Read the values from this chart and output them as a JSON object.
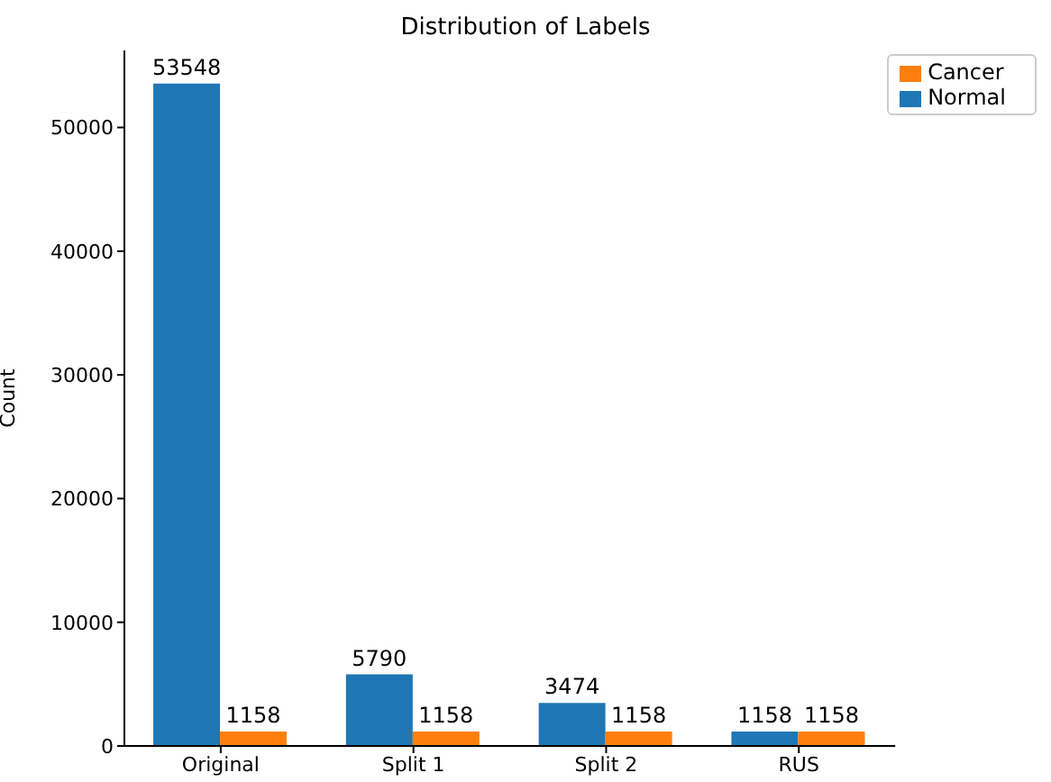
{
  "chart_data": {
    "type": "bar",
    "title": "Distribution of Labels",
    "ylabel": "Count",
    "categories": [
      "Original",
      "Split 1",
      "Split 2",
      "RUS"
    ],
    "series": [
      {
        "name": "Normal",
        "color": "#1f77b4",
        "values": [
          53548,
          5790,
          3474,
          1158
        ]
      },
      {
        "name": "Cancer",
        "color": "#ff7f0e",
        "values": [
          1158,
          1158,
          1158,
          1158
        ]
      }
    ],
    "ylim": [
      0,
      56225
    ],
    "yticks": [
      0,
      10000,
      20000,
      30000,
      40000,
      50000
    ],
    "data_labels": true,
    "legend": "top right",
    "grid": false
  }
}
